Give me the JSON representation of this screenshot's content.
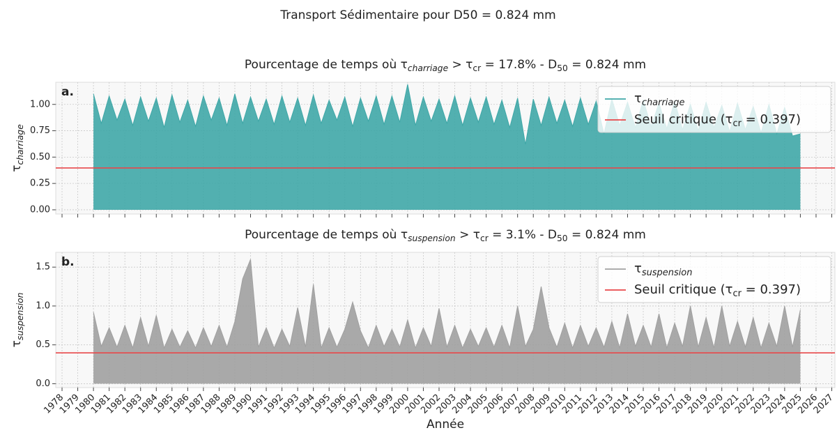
{
  "suptitle": "Transport Sédimentaire pour D50 = 0.824 mm",
  "chart_data": [
    {
      "type": "area",
      "title": [
        "Pourcentage de temps où τ",
        {
          "sub": "charriage"
        },
        " > τ",
        {
          "sub": "cr"
        },
        " = 17.8% - D",
        {
          "sub": "50"
        },
        " = 0.824 mm"
      ],
      "panel_label": "a.",
      "ylabel": [
        "τ",
        {
          "sub": "charriage"
        }
      ],
      "x": [
        1980,
        1980.5,
        1981,
        1981.5,
        1982,
        1982.5,
        1983,
        1983.5,
        1984,
        1984.5,
        1985,
        1985.5,
        1986,
        1986.5,
        1987,
        1987.5,
        1988,
        1988.5,
        1989,
        1989.5,
        1990,
        1990.5,
        1991,
        1991.5,
        1992,
        1992.5,
        1993,
        1993.5,
        1994,
        1994.5,
        1995,
        1995.5,
        1996,
        1996.5,
        1997,
        1997.5,
        1998,
        1998.5,
        1999,
        1999.5,
        2000,
        2000.5,
        2001,
        2001.5,
        2002,
        2002.5,
        2003,
        2003.5,
        2004,
        2004.5,
        2005,
        2005.5,
        2006,
        2006.5,
        2007,
        2007.5,
        2008,
        2008.5,
        2009,
        2009.5,
        2010,
        2010.5,
        2011,
        2011.5,
        2012,
        2012.5,
        2013,
        2013.5,
        2014,
        2014.5,
        2015,
        2015.5,
        2016,
        2016.5,
        2017,
        2017.5,
        2018,
        2018.5,
        2019,
        2019.5,
        2020,
        2020.5,
        2021,
        2021.5,
        2022,
        2022.5,
        2023,
        2023.5,
        2024,
        2024.5,
        2025
      ],
      "xlim": [
        1977.6,
        2027.2
      ],
      "xticks": [
        1978,
        1979,
        1980,
        1981,
        1982,
        1983,
        1984,
        1985,
        1986,
        1987,
        1988,
        1989,
        1990,
        1991,
        1992,
        1993,
        1994,
        1995,
        1996,
        1997,
        1998,
        1999,
        2000,
        2001,
        2002,
        2003,
        2004,
        2005,
        2006,
        2007,
        2008,
        2009,
        2010,
        2011,
        2012,
        2013,
        2014,
        2015,
        2016,
        2017,
        2018,
        2019,
        2020,
        2021,
        2022,
        2023,
        2024,
        2025,
        2026,
        2027
      ],
      "xtick_labels": false,
      "ylim": [
        -0.04,
        1.21
      ],
      "yticks": [
        {
          "value": 0,
          "label": "0.00"
        },
        {
          "value": 0.25,
          "label": "0.25"
        },
        {
          "value": 0.5,
          "label": "0.50"
        },
        {
          "value": 0.75,
          "label": "0.75"
        },
        {
          "value": 1,
          "label": "1.00"
        }
      ],
      "grid": true,
      "legend": "upper right",
      "series": [
        {
          "name": [
            "τ",
            {
              "sub": "charriage"
            }
          ],
          "color": "#3fa7a7",
          "values": [
            1.1,
            0.82,
            1.08,
            0.85,
            1.05,
            0.8,
            1.07,
            0.84,
            1.06,
            0.78,
            1.09,
            0.83,
            1.04,
            0.79,
            1.08,
            0.85,
            1.06,
            0.8,
            1.1,
            0.82,
            1.07,
            0.84,
            1.05,
            0.81,
            1.08,
            0.83,
            1.06,
            0.8,
            1.09,
            0.82,
            1.04,
            0.85,
            1.07,
            0.79,
            1.06,
            0.84,
            1.08,
            0.81,
            1.08,
            0.83,
            1.19,
            0.8,
            1.07,
            0.84,
            1.05,
            0.82,
            1.08,
            0.8,
            1.06,
            0.83,
            1.07,
            0.81,
            1.04,
            0.78,
            1.06,
            0.62,
            1.05,
            0.8,
            1.07,
            0.82,
            1.04,
            0.79,
            1.06,
            0.81,
            1.03,
            0.72,
            1.05,
            0.8,
            1.02,
            0.78,
            1.04,
            0.79,
            1.01,
            0.77,
            1.03,
            0.76,
            1.0,
            0.75,
            1.02,
            0.78,
            0.99,
            0.74,
            1.01,
            0.76,
            0.98,
            0.73,
            1.0,
            0.72,
            0.97,
            0.7,
            0.72
          ]
        }
      ],
      "threshold": {
        "name": [
          "Seuil critique (τ",
          {
            "sub": "cr"
          },
          " = 0.397)"
        ],
        "value": 0.397,
        "color": "#e8474a"
      }
    },
    {
      "type": "area",
      "title": [
        "Pourcentage de temps où τ",
        {
          "sub": "suspension"
        },
        " > τ",
        {
          "sub": "cr"
        },
        " = 3.1% - D",
        {
          "sub": "50"
        },
        " = 0.824 mm"
      ],
      "panel_label": "b.",
      "ylabel": [
        "τ",
        {
          "sub": "suspension"
        }
      ],
      "xlabel": "Année",
      "x": [
        1980,
        1980.5,
        1981,
        1981.5,
        1982,
        1982.5,
        1983,
        1983.5,
        1984,
        1984.5,
        1985,
        1985.5,
        1986,
        1986.5,
        1987,
        1987.5,
        1988,
        1988.5,
        1989,
        1989.5,
        1990,
        1990.5,
        1991,
        1991.5,
        1992,
        1992.5,
        1993,
        1993.5,
        1994,
        1994.5,
        1995,
        1995.5,
        1996,
        1996.5,
        1997,
        1997.5,
        1998,
        1998.5,
        1999,
        1999.5,
        2000,
        2000.5,
        2001,
        2001.5,
        2002,
        2002.5,
        2003,
        2003.5,
        2004,
        2004.5,
        2005,
        2005.5,
        2006,
        2006.5,
        2007,
        2007.5,
        2008,
        2008.5,
        2009,
        2009.5,
        2010,
        2010.5,
        2011,
        2011.5,
        2012,
        2012.5,
        2013,
        2013.5,
        2014,
        2014.5,
        2015,
        2015.5,
        2016,
        2016.5,
        2017,
        2017.5,
        2018,
        2018.5,
        2019,
        2019.5,
        2020,
        2020.5,
        2021,
        2021.5,
        2022,
        2022.5,
        2023,
        2023.5,
        2024,
        2024.5,
        2025
      ],
      "xlim": [
        1977.6,
        2027.2
      ],
      "xticks": [
        1978,
        1979,
        1980,
        1981,
        1982,
        1983,
        1984,
        1985,
        1986,
        1987,
        1988,
        1989,
        1990,
        1991,
        1992,
        1993,
        1994,
        1995,
        1996,
        1997,
        1998,
        1999,
        2000,
        2001,
        2002,
        2003,
        2004,
        2005,
        2006,
        2007,
        2008,
        2009,
        2010,
        2011,
        2012,
        2013,
        2014,
        2015,
        2016,
        2017,
        2018,
        2019,
        2020,
        2021,
        2022,
        2023,
        2024,
        2025,
        2026,
        2027
      ],
      "xtick_labels": true,
      "ylim": [
        -0.05,
        1.69
      ],
      "yticks": [
        {
          "value": 0,
          "label": "0.0"
        },
        0.5,
        {
          "value": 1,
          "label": "1.0"
        },
        1.5
      ],
      "grid": true,
      "legend": "upper right",
      "series": [
        {
          "name": [
            "τ",
            {
              "sub": "suspension"
            }
          ],
          "color": "#a0a0a0",
          "values": [
            0.92,
            0.48,
            0.72,
            0.47,
            0.75,
            0.46,
            0.85,
            0.48,
            0.88,
            0.46,
            0.7,
            0.47,
            0.68,
            0.46,
            0.72,
            0.48,
            0.75,
            0.47,
            0.8,
            1.35,
            1.6,
            0.47,
            0.72,
            0.46,
            0.7,
            0.48,
            0.98,
            0.47,
            1.28,
            0.46,
            0.72,
            0.47,
            0.7,
            1.05,
            0.68,
            0.46,
            0.75,
            0.48,
            0.7,
            0.47,
            0.82,
            0.46,
            0.72,
            0.48,
            0.97,
            0.47,
            0.75,
            0.46,
            0.7,
            0.48,
            0.72,
            0.47,
            0.75,
            0.46,
            1.0,
            0.48,
            0.7,
            1.25,
            0.72,
            0.47,
            0.78,
            0.46,
            0.75,
            0.48,
            0.72,
            0.47,
            0.8,
            0.46,
            0.9,
            0.48,
            0.75,
            0.47,
            0.9,
            0.46,
            0.78,
            0.48,
            1.0,
            0.47,
            0.85,
            0.46,
            1.0,
            0.48,
            0.8,
            0.47,
            0.85,
            0.46,
            0.78,
            0.48,
            1.0,
            0.47,
            0.95
          ]
        }
      ],
      "threshold": {
        "name": [
          "Seuil critique (τ",
          {
            "sub": "cr"
          },
          " = 0.397)"
        ],
        "value": 0.397,
        "color": "#e8474a"
      }
    }
  ]
}
